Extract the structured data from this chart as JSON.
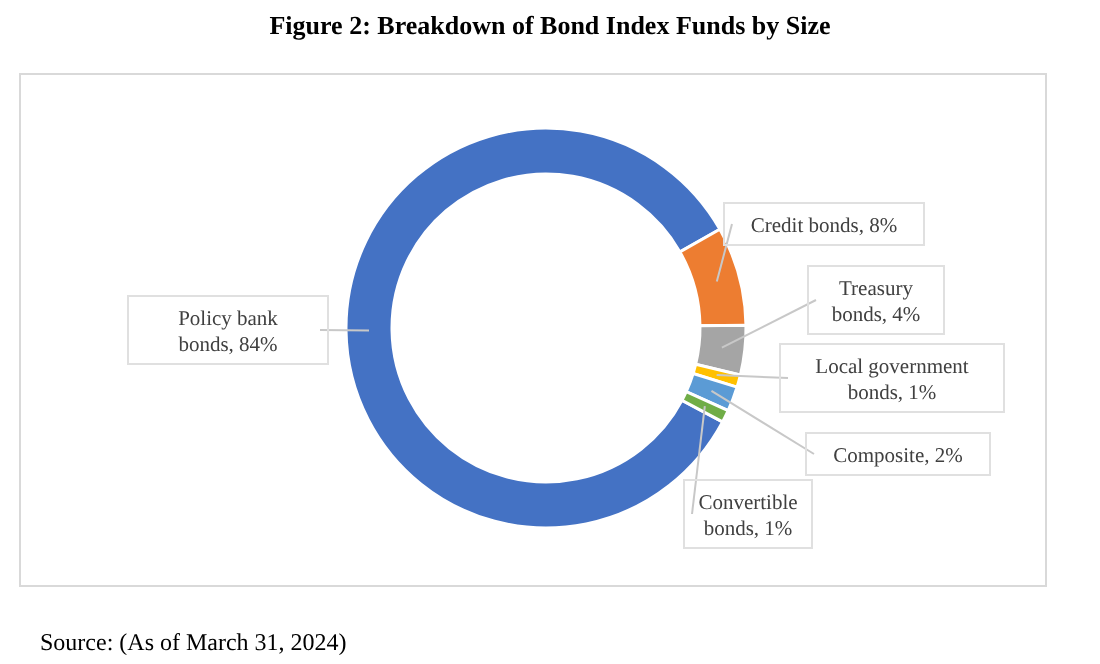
{
  "chart_data": {
    "type": "donut",
    "title": "Figure 2: Breakdown of Bond Index Funds by Size",
    "categories": [
      "Policy bank bonds",
      "Credit bonds",
      "Treasury bonds",
      "Local government bonds",
      "Composite",
      "Convertible bonds"
    ],
    "values": [
      84,
      8,
      4,
      1,
      2,
      1
    ],
    "value_labels": [
      "84%",
      "8%",
      "4%",
      "1%",
      "2%",
      "1%"
    ],
    "colors": [
      "#4472c4",
      "#ed7d31",
      "#a5a5a5",
      "#ffc000",
      "#5b9bd5",
      "#70ad47"
    ],
    "annotations": [
      "Source: (As of March 31, 2024)"
    ]
  }
}
